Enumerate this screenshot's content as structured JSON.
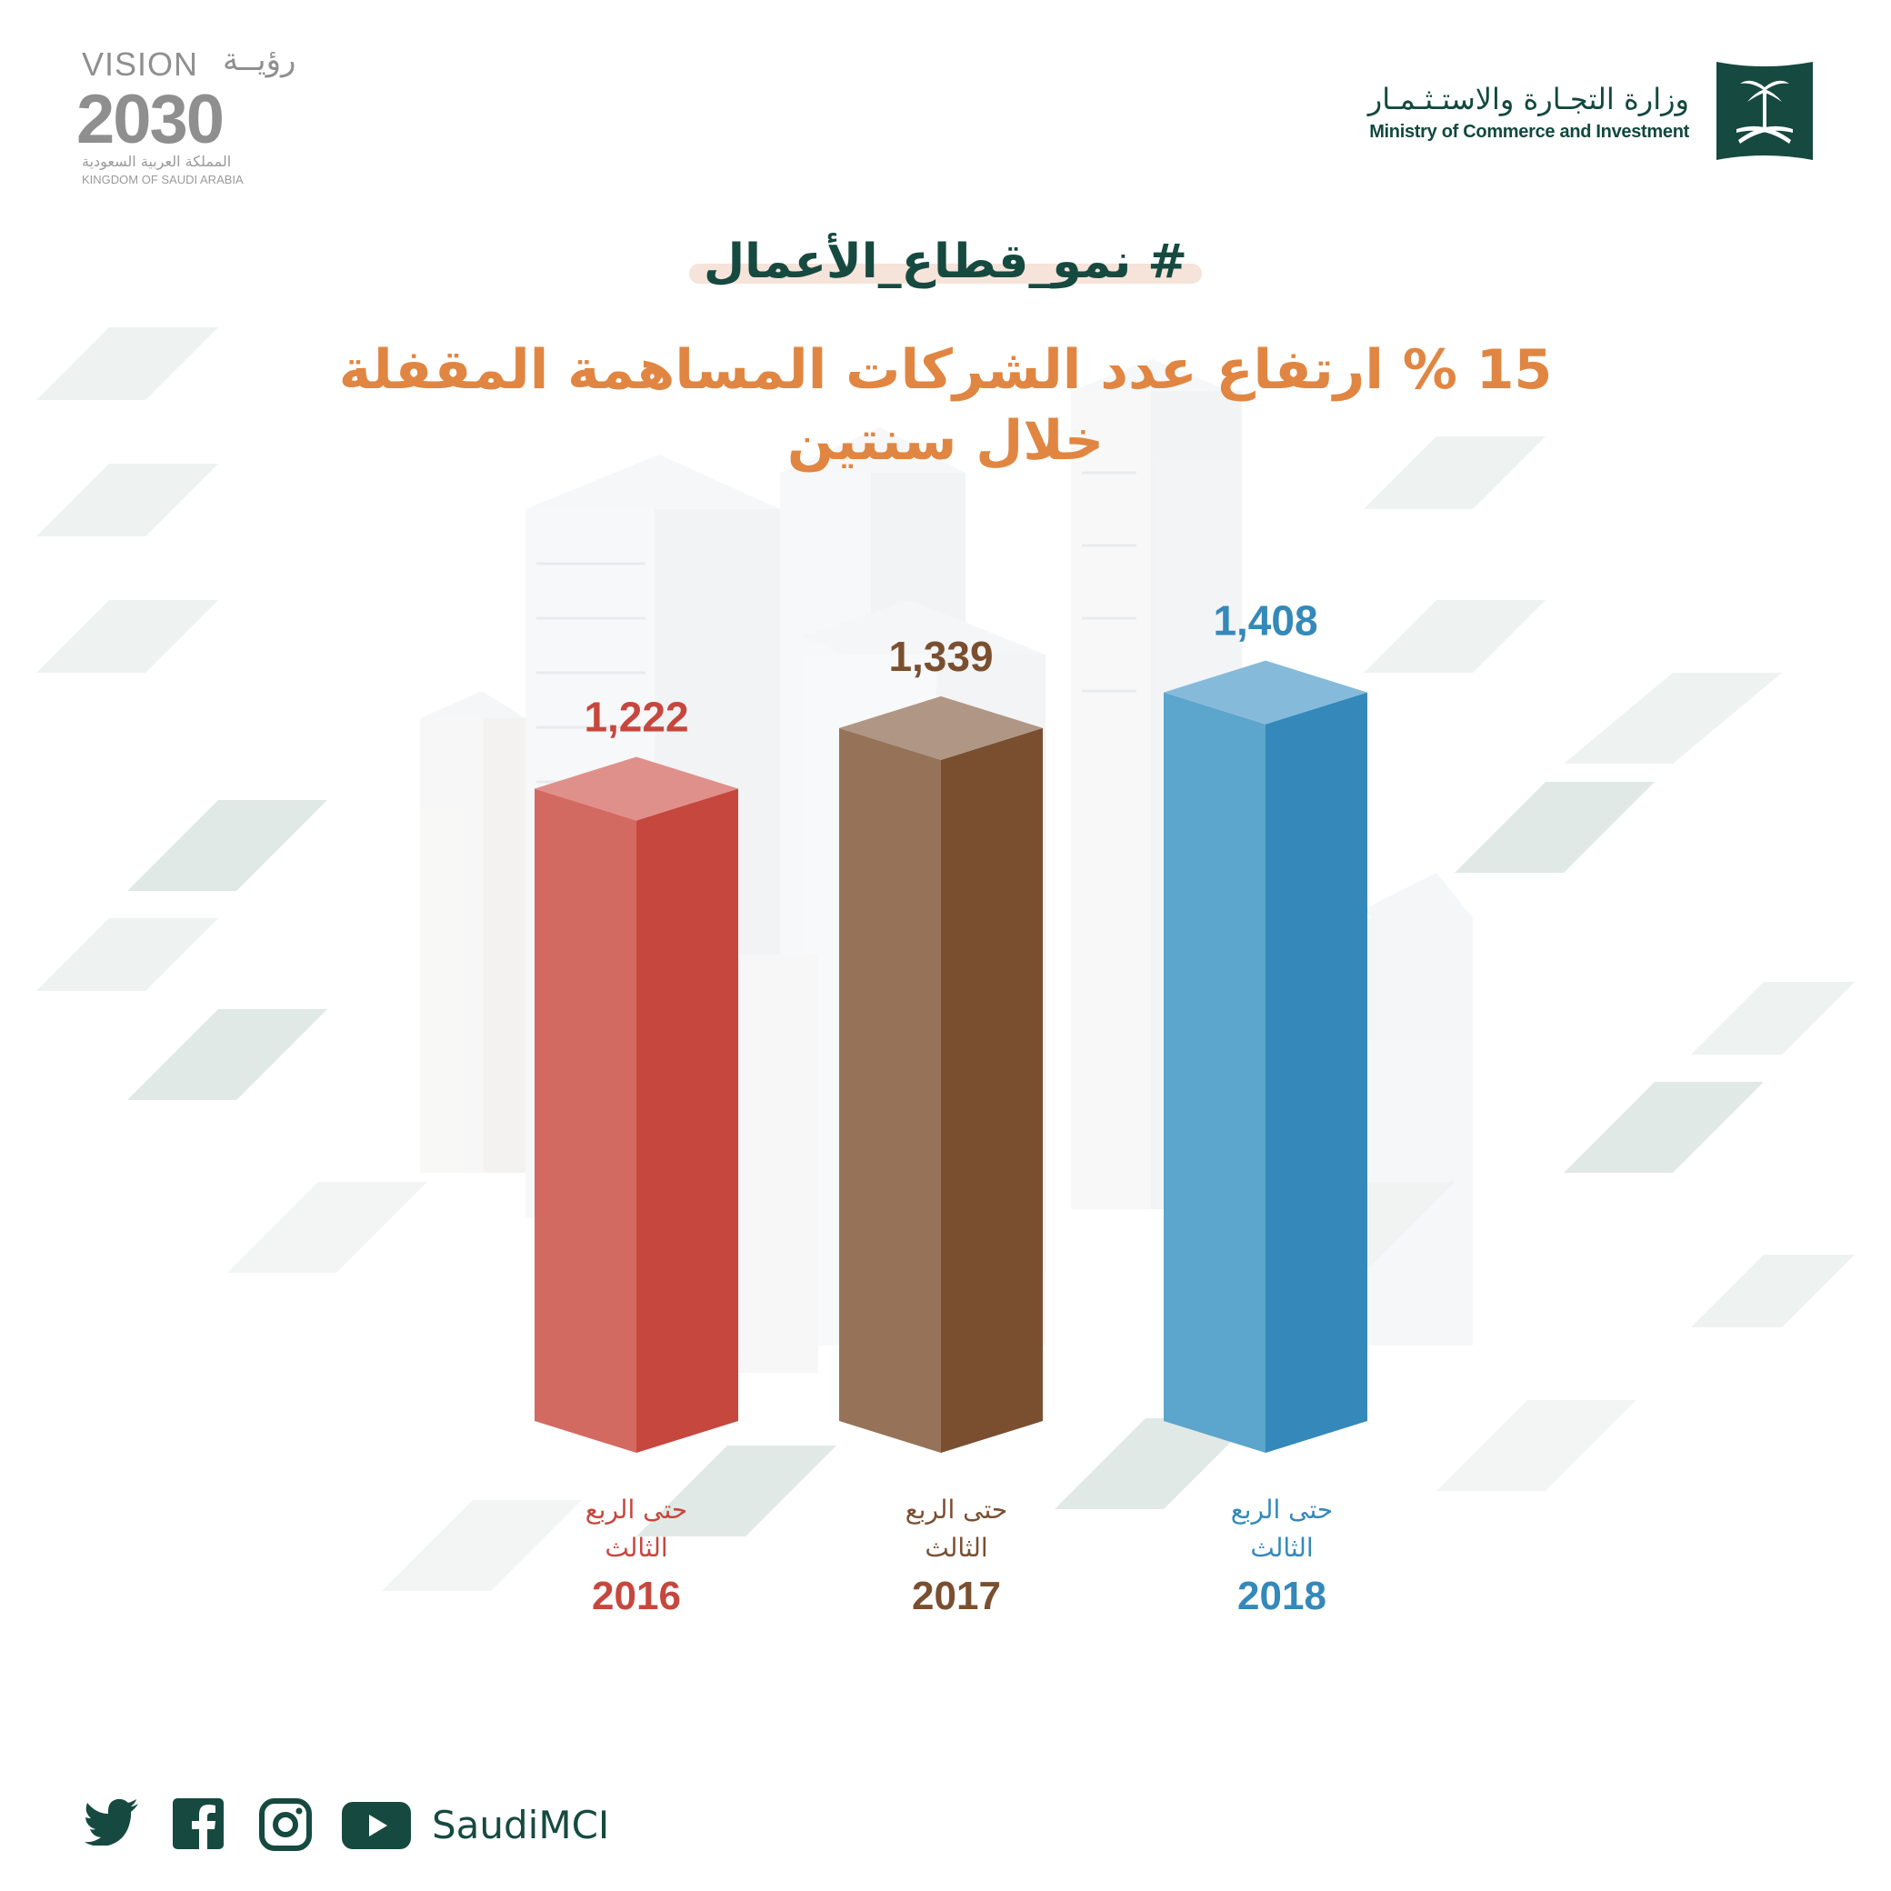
{
  "header": {
    "vision": {
      "word": "VISION",
      "arabic": "رؤيــة",
      "year": "2030",
      "kingdom_ar": "المملكة العربية السعودية",
      "kingdom_en": "KINGDOM OF SAUDI ARABIA"
    },
    "ministry": {
      "arabic": "وزارة التجـارة والاستـثـمـار",
      "english": "Ministry of Commerce and Investment"
    }
  },
  "hashtag": "# نمو_قطاع_الأعمال",
  "title_line1": "15 % ارتفاع عدد الشركات المساهمة المقفلة",
  "title_line2": "خلال سنتين",
  "chart_data": {
    "type": "bar",
    "categories": [
      "2016",
      "2017",
      "2018"
    ],
    "category_labels": [
      {
        "line1": "حتى الربع",
        "line2": "الثالث",
        "year": "2016"
      },
      {
        "line1": "حتى الربع",
        "line2": "الثالث",
        "year": "2017"
      },
      {
        "line1": "حتى الربع",
        "line2": "الثالث",
        "year": "2018"
      }
    ],
    "values": [
      1222,
      1339,
      1408
    ],
    "value_labels": [
      "1,222",
      "1,339",
      "1,408"
    ],
    "colors": [
      {
        "front": "#d36a62",
        "side": "#c6473e",
        "top": "#e0908a",
        "label": "#c6473e"
      },
      {
        "front": "#967358",
        "side": "#7a4f30",
        "top": "#b09684",
        "label": "#7a4f30"
      },
      {
        "front": "#5ca5cc",
        "side": "#3489ba",
        "top": "#86badb",
        "label": "#3489ba"
      }
    ],
    "title": "",
    "xlabel": "",
    "ylabel": "",
    "grid": false
  },
  "footer": {
    "icons": [
      "twitter-icon",
      "facebook-icon",
      "instagram-icon",
      "youtube-icon"
    ],
    "handle": "SaudiMCI"
  },
  "colors": {
    "brand_green": "#164a40",
    "title_orange": "#e08642",
    "hashtag_highlight": "#f6e3da"
  }
}
